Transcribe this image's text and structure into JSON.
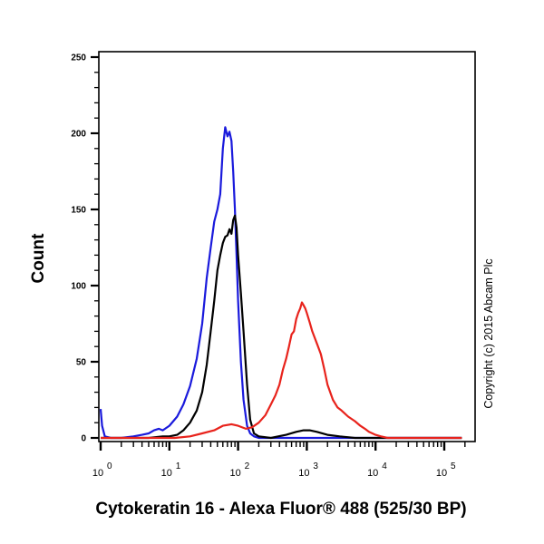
{
  "chart_data": {
    "type": "line",
    "title": "",
    "xlabel": "Cytokeratin 16 - Alexa Fluor® 488 (525/30 BP)",
    "ylabel": "Count",
    "xscale": "log",
    "xlim": [
      0.97,
      180000
    ],
    "ylim": [
      -2,
      252
    ],
    "y_ticks": [
      0,
      50,
      100,
      150,
      200,
      250
    ],
    "x_ticks": [
      "10^0",
      "10^1",
      "10^2",
      "10^3",
      "10^4",
      "10^5"
    ],
    "grid": false,
    "legend": null,
    "annotation": "Copyright (c) 2015 Abcam Plc",
    "series": [
      {
        "name": "blue",
        "color": "#1a1adc",
        "x": [
          1.0,
          1.05,
          1.15,
          1.4,
          2,
          3,
          4,
          5,
          6,
          7,
          8,
          10,
          13,
          16,
          20,
          25,
          30,
          35,
          40,
          45,
          50,
          55,
          60,
          65,
          70,
          75,
          80,
          85,
          90,
          95,
          100,
          110,
          120,
          135,
          150,
          170,
          200,
          300,
          1000,
          3000,
          10000,
          100000,
          180000
        ],
        "y": [
          19,
          8,
          1,
          0,
          0,
          1,
          2,
          3,
          5,
          6,
          5,
          8,
          14,
          22,
          34,
          52,
          75,
          105,
          125,
          142,
          150,
          160,
          190,
          204,
          198,
          201,
          195,
          175,
          150,
          120,
          90,
          50,
          25,
          8,
          3,
          1,
          0,
          0,
          0,
          0,
          0,
          0,
          0
        ]
      },
      {
        "name": "black",
        "color": "#000000",
        "x": [
          1.0,
          2,
          5,
          8,
          10,
          13,
          16,
          20,
          25,
          30,
          35,
          40,
          45,
          50,
          55,
          60,
          65,
          70,
          75,
          80,
          85,
          90,
          95,
          100,
          110,
          120,
          135,
          150,
          170,
          200,
          300,
          500,
          700,
          900,
          1100,
          1400,
          2000,
          3000,
          5000,
          100000,
          180000
        ],
        "y": [
          0,
          0,
          0,
          1,
          1,
          2,
          5,
          10,
          18,
          30,
          48,
          70,
          90,
          110,
          120,
          128,
          132,
          133,
          137,
          134,
          143,
          146,
          138,
          120,
          95,
          70,
          35,
          12,
          3,
          1,
          0,
          2,
          4,
          5,
          5,
          4,
          2,
          1,
          0,
          0,
          0
        ]
      },
      {
        "name": "red",
        "color": "#e8231c",
        "x": [
          1.0,
          3,
          8,
          12,
          20,
          30,
          45,
          60,
          80,
          100,
          130,
          160,
          200,
          250,
          300,
          350,
          400,
          450,
          500,
          550,
          600,
          650,
          700,
          750,
          800,
          850,
          900,
          950,
          1000,
          1100,
          1200,
          1400,
          1600,
          1800,
          2000,
          2400,
          2800,
          3200,
          4000,
          5000,
          6000,
          7000,
          8000,
          10000,
          12000,
          15000,
          20000,
          25000,
          100000,
          180000
        ],
        "y": [
          0,
          0,
          0,
          0,
          1,
          3,
          5,
          8,
          9,
          8,
          6,
          7,
          10,
          15,
          22,
          28,
          35,
          45,
          52,
          60,
          68,
          70,
          78,
          82,
          85,
          89,
          87,
          85,
          82,
          76,
          70,
          62,
          55,
          45,
          35,
          25,
          20,
          18,
          14,
          11,
          8,
          6,
          4,
          2,
          1,
          0,
          0,
          0,
          0,
          0
        ]
      }
    ]
  },
  "labels": {
    "ylabel": "Count",
    "xlabel": "Cytokeratin 16 - Alexa Fluor® 488 (525/30 BP)",
    "copyright": "Copyright (c) 2015 Abcam Plc"
  }
}
